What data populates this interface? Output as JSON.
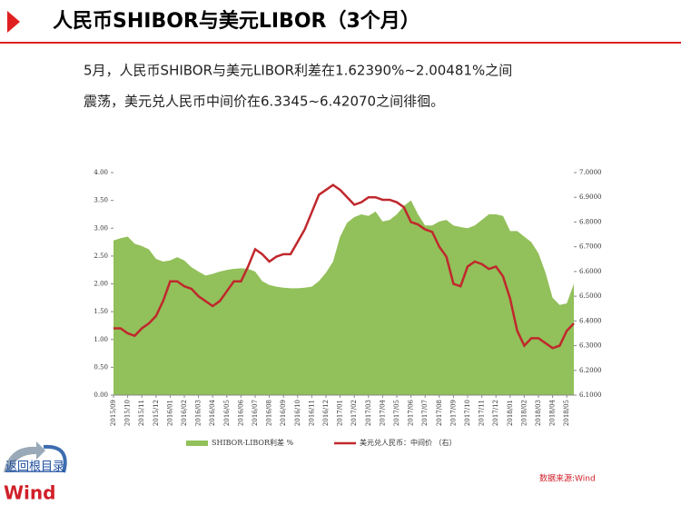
{
  "header": {
    "title": "人民币SHIBOR与美元LIBOR（3个月）"
  },
  "text": [
    "5月，人民币SHIBOR与美元LIBOR利差在1.62390%~2.00481%之间",
    "震荡，美元兑人民币中间价在6.3345~6.42070之间徘徊。"
  ],
  "nav": "返回根目录",
  "logo": "Wind",
  "source": "数据来源:Wind",
  "chart_data": {
    "type": "line",
    "categories": [
      "2015/09",
      null,
      "2015/10",
      null,
      "2015/11",
      null,
      "2015/12",
      null,
      "2016/01",
      null,
      "2016/02",
      null,
      "2016/03",
      null,
      "2016/04",
      null,
      "2016/05",
      null,
      "2016/06",
      null,
      "2016/07",
      null,
      "2016/08",
      null,
      "2016/09",
      null,
      "2016/10",
      null,
      "2016/11",
      null,
      "2016/12",
      null,
      "2017/01",
      null,
      "2017/02",
      null,
      "2017/03",
      null,
      "2017/04",
      null,
      "2017/05",
      null,
      "2017/06",
      null,
      "2017/07",
      null,
      "2017/08",
      null,
      "2017/09",
      null,
      "2017/10",
      null,
      "2017/11",
      null,
      "2017/12",
      null,
      "2018/01",
      null,
      "2018/02",
      null,
      "2018/03",
      null,
      "2018/04",
      null,
      "2018/05",
      null
    ],
    "series": [
      {
        "name": "SHIBOR-LIBOR利差 %",
        "color": "#92c05a",
        "kind": "area",
        "values": [
          2.78,
          2.82,
          2.85,
          2.72,
          2.68,
          2.62,
          2.45,
          2.4,
          2.42,
          2.48,
          2.42,
          2.3,
          2.22,
          2.15,
          2.18,
          2.22,
          2.25,
          2.27,
          2.28,
          2.27,
          2.22,
          2.05,
          1.98,
          1.95,
          1.93,
          1.92,
          1.92,
          1.93,
          1.95,
          2.05,
          2.2,
          2.4,
          2.85,
          3.1,
          3.2,
          3.25,
          3.22,
          3.3,
          3.12,
          3.15,
          3.25,
          3.4,
          3.5,
          3.25,
          3.05,
          3.05,
          3.12,
          3.15,
          3.05,
          3.02,
          3.0,
          3.05,
          3.15,
          3.25,
          3.25,
          3.22,
          2.95,
          2.95,
          2.85,
          2.75,
          2.55,
          2.2,
          1.75,
          1.62,
          1.65,
          2.0
        ]
      },
      {
        "name": "美元兑人民币：中间价 （右）",
        "color": "#c0282d",
        "kind": "line",
        "axis": "y2",
        "values": [
          6.37,
          6.37,
          6.35,
          6.34,
          6.37,
          6.39,
          6.42,
          6.48,
          6.56,
          6.56,
          6.54,
          6.53,
          6.5,
          6.48,
          6.46,
          6.48,
          6.52,
          6.56,
          6.56,
          6.62,
          6.69,
          6.67,
          6.64,
          6.66,
          6.67,
          6.67,
          6.72,
          6.77,
          6.84,
          6.91,
          6.93,
          6.95,
          6.93,
          6.9,
          6.87,
          6.88,
          6.9,
          6.9,
          6.89,
          6.89,
          6.88,
          6.86,
          6.8,
          6.79,
          6.77,
          6.76,
          6.7,
          6.66,
          6.55,
          6.54,
          6.62,
          6.64,
          6.63,
          6.61,
          6.62,
          6.58,
          6.49,
          6.36,
          6.3,
          6.33,
          6.33,
          6.31,
          6.29,
          6.3,
          6.36,
          6.39
        ]
      }
    ],
    "ylim": [
      0,
      4
    ],
    "yticks": [
      {
        "value": 0,
        "label": "0.00"
      },
      {
        "value": 0.5,
        "label": "0.50"
      },
      {
        "value": 1,
        "label": "1.00"
      },
      {
        "value": 1.5,
        "label": "1.50"
      },
      {
        "value": 2,
        "label": "2.00"
      },
      {
        "value": 2.5,
        "label": "2.50"
      },
      {
        "value": 3,
        "label": "3.00"
      },
      {
        "value": 3.5,
        "label": "3.50"
      },
      {
        "value": 4,
        "label": "4.00"
      }
    ],
    "y2lim": [
      6.1,
      7.0
    ],
    "y2ticks": [
      {
        "value": 6.1,
        "label": "6.1000"
      },
      {
        "value": 6.2,
        "label": "6.2000"
      },
      {
        "value": 6.3,
        "label": "6.3000"
      },
      {
        "value": 6.4,
        "label": "6.4000"
      },
      {
        "value": 6.5,
        "label": "6.5000"
      },
      {
        "value": 6.6,
        "label": "6.6000"
      },
      {
        "value": 6.7,
        "label": "6.7000"
      },
      {
        "value": 6.8,
        "label": "6.8000"
      },
      {
        "value": 6.9,
        "label": "6.9000"
      },
      {
        "value": 7.0,
        "label": "7.0000"
      }
    ]
  }
}
